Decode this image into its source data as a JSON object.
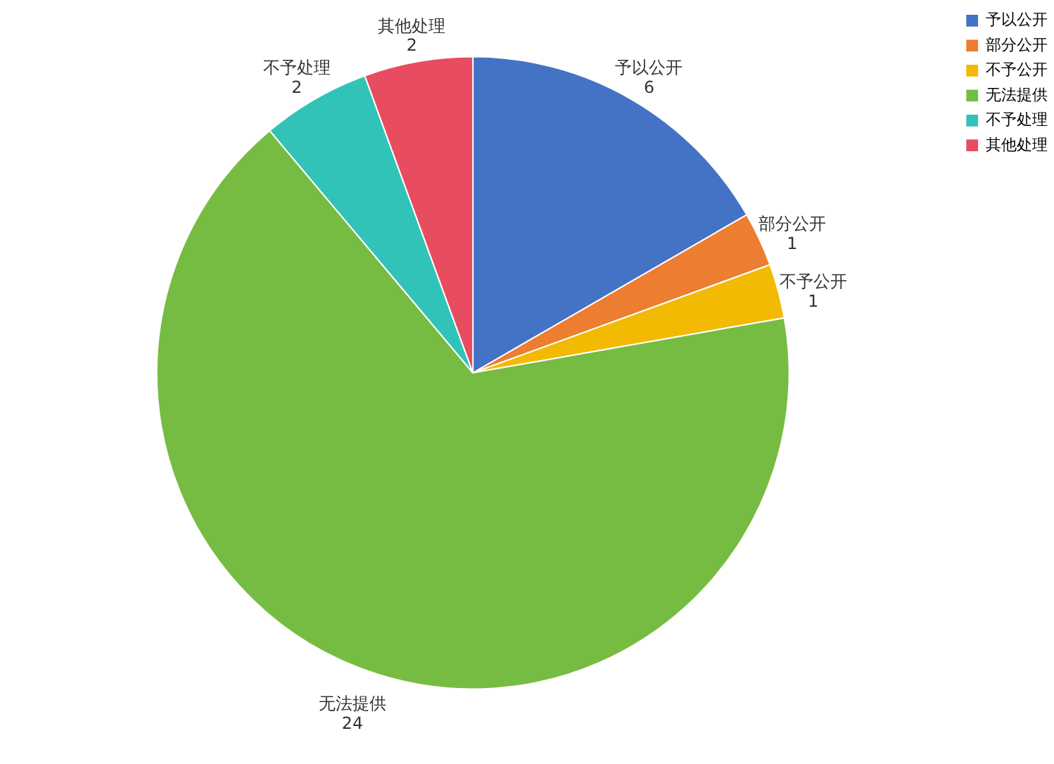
{
  "chart_data": {
    "type": "pie",
    "categories": [
      "予以公开",
      "部分公开",
      "不予公开",
      "无法提供",
      "不予处理",
      "其他处理"
    ],
    "values": [
      6,
      1,
      1,
      24,
      2,
      2
    ],
    "colors": [
      "#4472c4",
      "#ed7d31",
      "#f2ba02",
      "#77bc42",
      "#32c3b8",
      "#e84c60"
    ],
    "data_labels": true,
    "legend": "right"
  }
}
